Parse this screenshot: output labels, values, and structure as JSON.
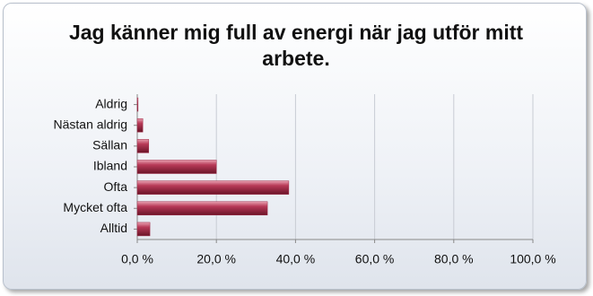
{
  "chart_data": {
    "type": "hbar",
    "title": "Jag känner mig full av energi när jag utför mitt arbete.",
    "categories": [
      "Aldrig",
      "Nästan aldrig",
      "Sällan",
      "Ibland",
      "Ofta",
      "Mycket ofta",
      "Alltid"
    ],
    "values": [
      0.2,
      1.4,
      2.9,
      20.0,
      38.3,
      32.9,
      3.2
    ],
    "color": "#a02c48",
    "xlim": [
      0,
      100
    ],
    "xticks": [
      {
        "value": 0,
        "label": "0,0 %"
      },
      {
        "value": 20,
        "label": "20,0 %"
      },
      {
        "value": 40,
        "label": "40,0 %"
      },
      {
        "value": 60,
        "label": "60,0 %"
      },
      {
        "value": 80,
        "label": "80,0 %"
      },
      {
        "value": 100,
        "label": "100,0 %"
      }
    ],
    "grid": true
  }
}
